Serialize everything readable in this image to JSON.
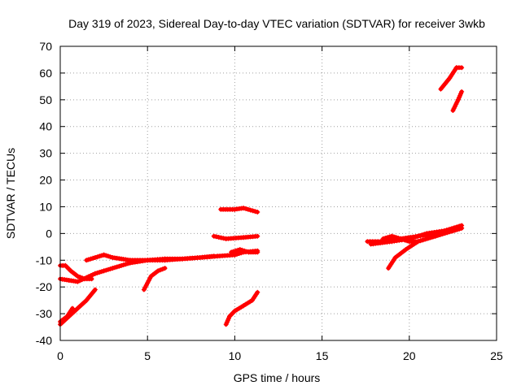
{
  "chart_data": {
    "type": "scatter",
    "title": "Day 319 of 2023, Sidereal Day-to-day VTEC variation (SDTVAR) for receiver 3wkb",
    "xlabel": "GPS time / hours",
    "ylabel": "SDTVAR / TECUs",
    "xlim": [
      0,
      25
    ],
    "ylim": [
      -40,
      70
    ],
    "xticks": [
      0,
      5,
      10,
      15,
      20,
      25
    ],
    "yticks": [
      -40,
      -30,
      -20,
      -10,
      0,
      10,
      20,
      30,
      40,
      50,
      60,
      70
    ],
    "grid": true,
    "color": "#ff0000",
    "series": [
      {
        "x": [
          0.0,
          0.5,
          1.0,
          1.5,
          2.0,
          2.5,
          3.0,
          3.5,
          4.0,
          5.0,
          6.0,
          7.0,
          8.0,
          8.8
        ],
        "y": [
          -17,
          -17.5,
          -18,
          -16.5,
          -15,
          -14,
          -13,
          -12,
          -11,
          -10,
          -9.5,
          -9.5,
          -9,
          -8.5
        ]
      },
      {
        "x": [
          0.0,
          0.3,
          0.6,
          1.0,
          1.4,
          1.8
        ],
        "y": [
          -12,
          -12,
          -14,
          -16,
          -17,
          -17
        ]
      },
      {
        "x": [
          1.5,
          2.0,
          2.5,
          3.0,
          3.5,
          4.0,
          5.0,
          6.0,
          7.0,
          8.0,
          9.0,
          10.0,
          10.5,
          11.3
        ],
        "y": [
          -10,
          -9,
          -8,
          -9,
          -9.5,
          -10,
          -10,
          -10,
          -9.5,
          -9,
          -8.5,
          -8,
          -7,
          -6.5
        ]
      },
      {
        "x": [
          0.0,
          0.5,
          1.0,
          1.5,
          2.0
        ],
        "y": [
          -34,
          -31,
          -28,
          -25,
          -21
        ]
      },
      {
        "x": [
          0.0,
          0.4,
          0.7
        ],
        "y": [
          -33,
          -31,
          -28
        ]
      },
      {
        "x": [
          4.8,
          5.2,
          5.6,
          6.0
        ],
        "y": [
          -21,
          -16,
          -14,
          -13
        ]
      },
      {
        "x": [
          9.2,
          10.0,
          10.5,
          11.3
        ],
        "y": [
          9,
          9,
          9.5,
          8
        ]
      },
      {
        "x": [
          8.8,
          9.5,
          10.5,
          11.3
        ],
        "y": [
          -1,
          -2,
          -1.5,
          -1
        ]
      },
      {
        "x": [
          9.5,
          9.7,
          10.0,
          10.5,
          11.0,
          11.3
        ],
        "y": [
          -34,
          -31,
          -29,
          -27,
          -25,
          -22
        ]
      },
      {
        "x": [
          9.8,
          10.3,
          10.8,
          11.3
        ],
        "y": [
          -7,
          -6,
          -7,
          -7
        ]
      },
      {
        "x": [
          17.6,
          18.5,
          19.5,
          20.5,
          21.5,
          22.5,
          23.0
        ],
        "y": [
          -3,
          -3,
          -2,
          -1,
          0,
          1,
          2
        ]
      },
      {
        "x": [
          17.8,
          19.0,
          20.0,
          21.0,
          22.0,
          23.0
        ],
        "y": [
          -4,
          -3,
          -2,
          0,
          1,
          3
        ]
      },
      {
        "x": [
          18.8,
          19.2,
          19.8,
          20.5,
          21.5,
          23.0
        ],
        "y": [
          -13,
          -9,
          -6,
          -3,
          -1,
          2
        ]
      },
      {
        "x": [
          18.5,
          19.0,
          19.5,
          20.0,
          20.5
        ],
        "y": [
          -2,
          -1,
          -2,
          -3,
          -3
        ]
      },
      {
        "x": [
          21.8,
          22.3,
          22.7,
          23.0
        ],
        "y": [
          54,
          58,
          62,
          62
        ]
      },
      {
        "x": [
          22.5,
          22.8,
          23.0
        ],
        "y": [
          46,
          50,
          53
        ]
      }
    ]
  }
}
